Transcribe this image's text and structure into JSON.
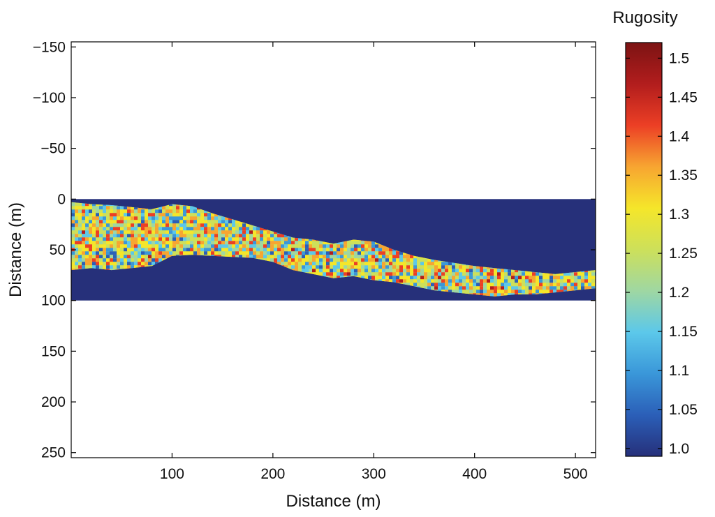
{
  "chart_data": {
    "type": "heatmap",
    "title": "",
    "xlabel": "Distance (m)",
    "ylabel": "Distance (m)",
    "xlim": [
      0,
      520
    ],
    "ylim": [
      -155,
      255
    ],
    "y_axis_reversed": true,
    "x_ticks": [
      100,
      200,
      300,
      400,
      500
    ],
    "y_ticks": [
      -150,
      -100,
      -50,
      0,
      50,
      100,
      150,
      200,
      250
    ],
    "data_extent": {
      "x": [
        0,
        520
      ],
      "y": [
        0,
        100
      ]
    },
    "background_value": 1.0,
    "reef_band": {
      "x": [
        0,
        20,
        40,
        60,
        80,
        100,
        120,
        140,
        160,
        180,
        200,
        220,
        240,
        260,
        280,
        300,
        320,
        340,
        360,
        380,
        400,
        420,
        440,
        460,
        480,
        500,
        520
      ],
      "y_top": [
        3,
        5,
        6,
        8,
        10,
        5,
        7,
        14,
        20,
        26,
        32,
        38,
        40,
        44,
        40,
        42,
        50,
        56,
        60,
        63,
        66,
        68,
        70,
        72,
        74,
        72,
        70
      ],
      "y_bottom": [
        70,
        68,
        70,
        68,
        66,
        56,
        55,
        56,
        57,
        58,
        62,
        70,
        74,
        78,
        76,
        80,
        82,
        86,
        90,
        92,
        94,
        96,
        94,
        94,
        92,
        90,
        88
      ]
    },
    "colorbar": {
      "label": "Rugosity",
      "min": 0.99,
      "max": 1.52,
      "ticks": [
        "1.0",
        "1.05",
        "1.1",
        "1.15",
        "1.2",
        "1.25",
        "1.3",
        "1.35",
        "1.4",
        "1.45",
        "1.5"
      ],
      "colormap": "jet",
      "colors": [
        "#26307a",
        "#2b5fb8",
        "#3a97d9",
        "#5cc8ea",
        "#9fd7a2",
        "#cde05a",
        "#f5e62a",
        "#f7a531",
        "#ec3f25",
        "#b21d1d",
        "#7c1313"
      ]
    }
  }
}
